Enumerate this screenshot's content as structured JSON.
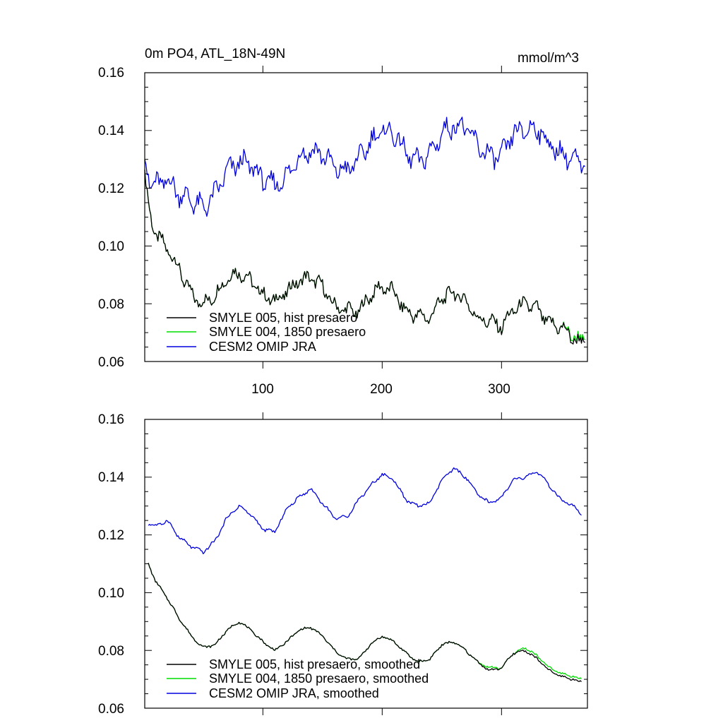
{
  "chart_data": [
    {
      "type": "line",
      "title": "0m PO4, ATL_18N-49N",
      "units": "mmol/m^3",
      "xlim": [
        1,
        372
      ],
      "ylim": [
        0.06,
        0.16
      ],
      "x_ticks": [
        100,
        200,
        300
      ],
      "x_tick_labels": [
        "100",
        "200",
        "300"
      ],
      "y_ticks": [
        0.06,
        0.08,
        0.1,
        0.12,
        0.14,
        0.16
      ],
      "y_tick_labels": [
        "0.06",
        "0.08",
        "0.10",
        "0.12",
        "0.14",
        "0.16"
      ],
      "legend_position": "bottom-left",
      "colors": {
        "smyle005": "#000000",
        "smyle004": "#00dd00",
        "omip": "#0000dd"
      },
      "series": [
        {
          "name": "SMYLE 005, hist presaero",
          "color": "#000000",
          "x": [
            1,
            5,
            10,
            20,
            30,
            40,
            50,
            60,
            70,
            80,
            90,
            100,
            110,
            120,
            130,
            140,
            150,
            160,
            170,
            180,
            190,
            200,
            210,
            220,
            230,
            240,
            250,
            260,
            270,
            280,
            290,
            300,
            310,
            320,
            330,
            340,
            350,
            360,
            370
          ],
          "values": [
            0.124,
            0.112,
            0.104,
            0.099,
            0.092,
            0.083,
            0.08,
            0.083,
            0.089,
            0.091,
            0.088,
            0.083,
            0.081,
            0.084,
            0.088,
            0.089,
            0.086,
            0.079,
            0.078,
            0.077,
            0.083,
            0.086,
            0.084,
            0.077,
            0.076,
            0.075,
            0.082,
            0.084,
            0.081,
            0.075,
            0.074,
            0.072,
            0.078,
            0.08,
            0.078,
            0.073,
            0.072,
            0.068,
            0.066
          ],
          "amp": 0.0035
        },
        {
          "name": "SMYLE 004, 1850 presaero",
          "color": "#00dd00",
          "x": [
            1,
            5,
            10,
            20,
            30,
            40,
            50,
            60,
            70,
            80,
            90,
            100,
            110,
            120,
            130,
            140,
            150,
            160,
            170,
            180,
            190,
            200,
            210,
            220,
            230,
            240,
            250,
            260,
            270,
            280,
            290,
            300,
            310,
            320,
            330,
            340,
            350,
            360,
            370
          ],
          "values": [
            0.124,
            0.112,
            0.104,
            0.099,
            0.092,
            0.083,
            0.08,
            0.083,
            0.089,
            0.091,
            0.088,
            0.083,
            0.081,
            0.084,
            0.088,
            0.089,
            0.086,
            0.079,
            0.078,
            0.077,
            0.083,
            0.086,
            0.084,
            0.077,
            0.076,
            0.075,
            0.082,
            0.084,
            0.081,
            0.075,
            0.074,
            0.072,
            0.078,
            0.08,
            0.078,
            0.073,
            0.072,
            0.069,
            0.067
          ],
          "amp": 0.0035
        },
        {
          "name": "CESM2 OMIP JRA",
          "color": "#0000dd",
          "x": [
            1,
            5,
            10,
            20,
            30,
            40,
            50,
            60,
            70,
            80,
            90,
            100,
            110,
            120,
            130,
            140,
            150,
            160,
            170,
            180,
            190,
            200,
            210,
            220,
            230,
            240,
            250,
            260,
            270,
            280,
            290,
            300,
            310,
            320,
            330,
            340,
            350,
            360,
            370
          ],
          "values": [
            0.131,
            0.122,
            0.121,
            0.123,
            0.118,
            0.116,
            0.113,
            0.118,
            0.126,
            0.129,
            0.128,
            0.123,
            0.121,
            0.124,
            0.131,
            0.133,
            0.132,
            0.127,
            0.126,
            0.13,
            0.136,
            0.14,
            0.139,
            0.132,
            0.129,
            0.132,
            0.139,
            0.142,
            0.141,
            0.135,
            0.131,
            0.131,
            0.139,
            0.14,
            0.141,
            0.135,
            0.132,
            0.13,
            0.127
          ],
          "amp": 0.005
        }
      ]
    },
    {
      "type": "line",
      "xlim": [
        1,
        372
      ],
      "ylim": [
        0.06,
        0.16
      ],
      "x_ticks": [
        100,
        200,
        300
      ],
      "y_ticks": [
        0.06,
        0.08,
        0.1,
        0.12,
        0.14,
        0.16
      ],
      "y_tick_labels": [
        "0.06",
        "0.08",
        "0.10",
        "0.12",
        "0.14",
        "0.16"
      ],
      "legend_position": "bottom-left",
      "series": [
        {
          "name": "SMYLE 005, hist presaero, smoothed",
          "color": "#000000",
          "x": [
            4,
            10,
            20,
            30,
            40,
            50,
            60,
            70,
            80,
            90,
            100,
            110,
            120,
            130,
            140,
            150,
            160,
            170,
            180,
            190,
            200,
            210,
            220,
            230,
            240,
            250,
            260,
            270,
            280,
            290,
            300,
            310,
            320,
            330,
            340,
            350,
            360,
            367
          ],
          "values": [
            0.11,
            0.104,
            0.098,
            0.091,
            0.085,
            0.081,
            0.082,
            0.087,
            0.09,
            0.087,
            0.083,
            0.08,
            0.083,
            0.087,
            0.088,
            0.085,
            0.08,
            0.077,
            0.077,
            0.082,
            0.085,
            0.083,
            0.079,
            0.076,
            0.077,
            0.082,
            0.083,
            0.08,
            0.076,
            0.073,
            0.074,
            0.079,
            0.08,
            0.077,
            0.073,
            0.071,
            0.07,
            0.069
          ],
          "amp": 0.0006
        },
        {
          "name": "SMYLE 004, 1850 presaero, smoothed",
          "color": "#00dd00",
          "x": [
            4,
            10,
            20,
            30,
            40,
            50,
            60,
            70,
            80,
            90,
            100,
            110,
            120,
            130,
            140,
            150,
            160,
            170,
            180,
            190,
            200,
            210,
            220,
            230,
            240,
            250,
            260,
            270,
            280,
            290,
            300,
            310,
            320,
            330,
            340,
            350,
            360,
            367
          ],
          "values": [
            0.11,
            0.104,
            0.098,
            0.091,
            0.085,
            0.081,
            0.082,
            0.087,
            0.09,
            0.087,
            0.083,
            0.08,
            0.083,
            0.087,
            0.088,
            0.085,
            0.08,
            0.077,
            0.077,
            0.082,
            0.085,
            0.083,
            0.079,
            0.076,
            0.077,
            0.082,
            0.083,
            0.08,
            0.076,
            0.074,
            0.074,
            0.079,
            0.081,
            0.078,
            0.074,
            0.072,
            0.071,
            0.07
          ],
          "amp": 0.0006
        },
        {
          "name": "CESM2 OMIP JRA, smoothed",
          "color": "#0000dd",
          "x": [
            4,
            10,
            20,
            30,
            40,
            50,
            60,
            70,
            80,
            90,
            100,
            110,
            120,
            130,
            140,
            150,
            160,
            170,
            180,
            190,
            200,
            210,
            220,
            230,
            240,
            250,
            260,
            270,
            280,
            290,
            300,
            310,
            320,
            330,
            340,
            350,
            360,
            367
          ],
          "values": [
            0.124,
            0.123,
            0.125,
            0.119,
            0.116,
            0.114,
            0.118,
            0.126,
            0.13,
            0.127,
            0.122,
            0.121,
            0.129,
            0.133,
            0.136,
            0.131,
            0.126,
            0.126,
            0.132,
            0.137,
            0.141,
            0.139,
            0.132,
            0.13,
            0.131,
            0.139,
            0.143,
            0.14,
            0.134,
            0.131,
            0.133,
            0.139,
            0.14,
            0.142,
            0.137,
            0.132,
            0.13,
            0.127
          ],
          "amp": 0.0008
        }
      ]
    }
  ]
}
